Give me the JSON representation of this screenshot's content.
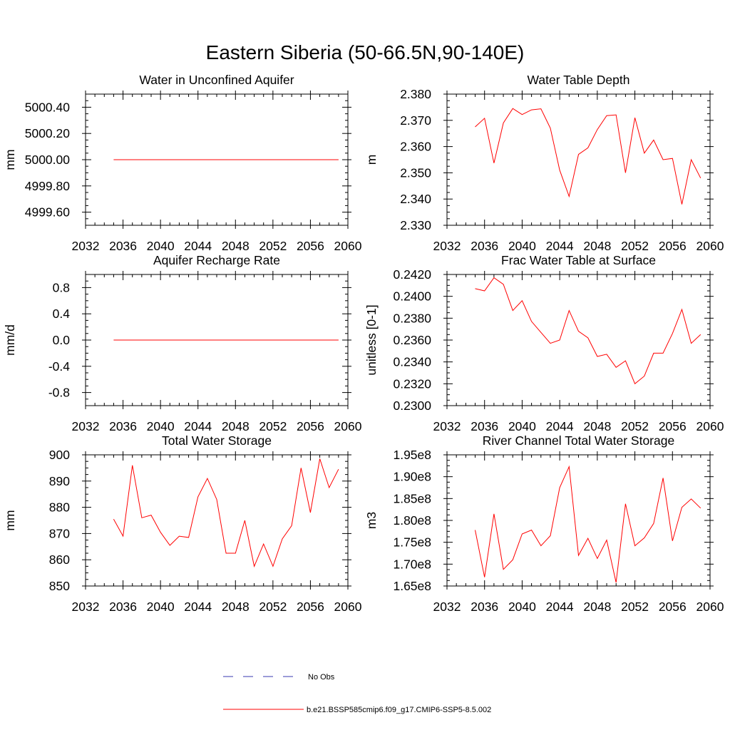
{
  "page_title": "Eastern Siberia (50-66.5N,90-140E)",
  "colors": {
    "model": "#ff0000",
    "obs": "#3a3ab0",
    "frame": "#000000"
  },
  "legend": {
    "obs_label": "No Obs",
    "model_label": "b.e21.BSSP585cmip6.f09_g17.CMIP6-SSP5-8.5.002"
  },
  "chart_data": [
    {
      "id": "aquifer",
      "type": "line",
      "title": "Water in Unconfined Aquifer",
      "ylabel": "mm",
      "xlim": [
        2032,
        2060
      ],
      "ylim": [
        4999.5,
        5000.5
      ],
      "xticks": [
        2032,
        2036,
        2040,
        2044,
        2048,
        2052,
        2056,
        2060
      ],
      "yticks": [
        4999.6,
        4999.8,
        5000.0,
        5000.2,
        5000.4
      ],
      "yticklabels": [
        "4999.60",
        "4999.80",
        "5000.00",
        "5000.20",
        "5000.40"
      ],
      "x": [
        2035,
        2036,
        2037,
        2038,
        2039,
        2040,
        2041,
        2042,
        2043,
        2044,
        2045,
        2046,
        2047,
        2048,
        2049,
        2050,
        2051,
        2052,
        2053,
        2054,
        2055,
        2056,
        2057,
        2058,
        2059
      ],
      "series": [
        {
          "values": [
            5000,
            5000,
            5000,
            5000,
            5000,
            5000,
            5000,
            5000,
            5000,
            5000,
            5000,
            5000,
            5000,
            5000,
            5000,
            5000,
            5000,
            5000,
            5000,
            5000,
            5000,
            5000,
            5000,
            5000,
            5000
          ]
        }
      ]
    },
    {
      "id": "wtd",
      "type": "line",
      "title": "Water Table Depth",
      "ylabel": "m",
      "xlim": [
        2032,
        2060
      ],
      "ylim": [
        2.33,
        2.38
      ],
      "xticks": [
        2032,
        2036,
        2040,
        2044,
        2048,
        2052,
        2056,
        2060
      ],
      "yticks": [
        2.33,
        2.34,
        2.35,
        2.36,
        2.37,
        2.38
      ],
      "yticklabels": [
        "2.330",
        "2.340",
        "2.350",
        "2.360",
        "2.370",
        "2.380"
      ],
      "x": [
        2035,
        2036,
        2037,
        2038,
        2039,
        2040,
        2041,
        2042,
        2043,
        2044,
        2045,
        2046,
        2047,
        2048,
        2049,
        2050,
        2051,
        2052,
        2053,
        2054,
        2055,
        2056,
        2057,
        2058,
        2059
      ],
      "series": [
        {
          "values": [
            2.3675,
            2.3708,
            2.3537,
            2.369,
            2.3745,
            2.3722,
            2.374,
            2.3744,
            2.367,
            2.351,
            2.341,
            2.357,
            2.3595,
            2.3665,
            2.3718,
            2.3721,
            2.35,
            2.371,
            2.3575,
            2.3625,
            2.355,
            2.3555,
            2.338,
            2.355,
            2.348
          ]
        }
      ]
    },
    {
      "id": "recharge",
      "type": "line",
      "title": "Aquifer Recharge Rate",
      "ylabel": "mm/d",
      "xlim": [
        2032,
        2060
      ],
      "ylim": [
        -1.0,
        1.0
      ],
      "xticks": [
        2032,
        2036,
        2040,
        2044,
        2048,
        2052,
        2056,
        2060
      ],
      "yticks": [
        -0.8,
        -0.4,
        0.0,
        0.4,
        0.8
      ],
      "yticklabels": [
        "-0.8",
        "-0.4",
        "0.0",
        "0.4",
        "0.8"
      ],
      "x": [
        2035,
        2036,
        2037,
        2038,
        2039,
        2040,
        2041,
        2042,
        2043,
        2044,
        2045,
        2046,
        2047,
        2048,
        2049,
        2050,
        2051,
        2052,
        2053,
        2054,
        2055,
        2056,
        2057,
        2058,
        2059
      ],
      "series": [
        {
          "values": [
            0,
            0,
            0,
            0,
            0,
            0,
            0,
            0,
            0,
            0,
            0,
            0,
            0,
            0,
            0,
            0,
            0,
            0,
            0,
            0,
            0,
            0,
            0,
            0,
            0
          ]
        }
      ]
    },
    {
      "id": "fracwt",
      "type": "line",
      "title": "Frac Water Table at Surface",
      "ylabel": "unitless [0-1]",
      "xlim": [
        2032,
        2060
      ],
      "ylim": [
        0.23,
        0.242
      ],
      "xticks": [
        2032,
        2036,
        2040,
        2044,
        2048,
        2052,
        2056,
        2060
      ],
      "yticks": [
        0.23,
        0.232,
        0.234,
        0.236,
        0.238,
        0.24,
        0.242
      ],
      "yticklabels": [
        "0.2300",
        "0.2320",
        "0.2340",
        "0.2360",
        "0.2380",
        "0.2400",
        "0.2420"
      ],
      "x": [
        2035,
        2036,
        2037,
        2038,
        2039,
        2040,
        2041,
        2042,
        2043,
        2044,
        2045,
        2046,
        2047,
        2048,
        2049,
        2050,
        2051,
        2052,
        2053,
        2054,
        2055,
        2056,
        2057,
        2058,
        2059
      ],
      "series": [
        {
          "values": [
            0.2407,
            0.2405,
            0.2417,
            0.2411,
            0.2387,
            0.2396,
            0.2377,
            0.2367,
            0.2357,
            0.236,
            0.2387,
            0.2368,
            0.2362,
            0.2345,
            0.2347,
            0.2335,
            0.2341,
            0.232,
            0.2327,
            0.2348,
            0.2348,
            0.2366,
            0.2388,
            0.2357,
            0.2365
          ]
        }
      ]
    },
    {
      "id": "tws",
      "type": "line",
      "title": "Total Water Storage",
      "ylabel": "mm",
      "xlim": [
        2032,
        2060
      ],
      "ylim": [
        850,
        900
      ],
      "xticks": [
        2032,
        2036,
        2040,
        2044,
        2048,
        2052,
        2056,
        2060
      ],
      "yticks": [
        850,
        860,
        870,
        880,
        890,
        900
      ],
      "yticklabels": [
        "850",
        "860",
        "870",
        "880",
        "890",
        "900"
      ],
      "x": [
        2035,
        2036,
        2037,
        2038,
        2039,
        2040,
        2041,
        2042,
        2043,
        2044,
        2045,
        2046,
        2047,
        2048,
        2049,
        2050,
        2051,
        2052,
        2053,
        2054,
        2055,
        2056,
        2057,
        2058,
        2059
      ],
      "series": [
        {
          "values": [
            875.5,
            869.0,
            896.0,
            876.0,
            877.0,
            870.5,
            865.5,
            869.0,
            868.5,
            884.0,
            891.0,
            883.0,
            862.5,
            862.5,
            875.0,
            857.5,
            866.0,
            857.5,
            868.0,
            873.0,
            895.0,
            878.0,
            898.5,
            887.5,
            894.5
          ]
        }
      ]
    },
    {
      "id": "rivstor",
      "type": "line",
      "title": "River Channel Total Water Storage",
      "ylabel": "m3",
      "xlim": [
        2032,
        2060
      ],
      "ylim": [
        165000000,
        195000000
      ],
      "xticks": [
        2032,
        2036,
        2040,
        2044,
        2048,
        2052,
        2056,
        2060
      ],
      "yticks": [
        165000000,
        170000000,
        175000000,
        180000000,
        185000000,
        190000000,
        195000000
      ],
      "yticklabels": [
        "1.65e8",
        "1.70e8",
        "1.75e8",
        "1.80e8",
        "1.85e8",
        "1.90e8",
        "1.95e8"
      ],
      "x": [
        2035,
        2036,
        2037,
        2038,
        2039,
        2040,
        2041,
        2042,
        2043,
        2044,
        2045,
        2046,
        2047,
        2048,
        2049,
        2050,
        2051,
        2052,
        2053,
        2054,
        2055,
        2056,
        2057,
        2058,
        2059
      ],
      "series": [
        {
          "values": [
            177800000,
            167000000,
            181500000,
            168800000,
            171000000,
            176900000,
            177800000,
            174200000,
            176500000,
            187500000,
            192300000,
            172000000,
            175900000,
            171300000,
            175500000,
            165800000,
            183800000,
            174200000,
            176000000,
            179300000,
            189700000,
            175300000,
            183000000,
            184900000,
            182800000
          ]
        }
      ]
    }
  ]
}
